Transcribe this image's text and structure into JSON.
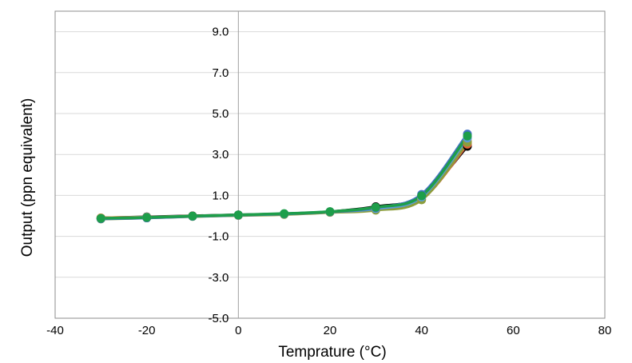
{
  "chart_data": {
    "type": "line",
    "title": "",
    "xlabel": "Temprature (°C)",
    "ylabel": "Output (ppn equivalent)",
    "xlim": [
      -40,
      80
    ],
    "ylim": [
      -5,
      10
    ],
    "xticks": [
      -40,
      -20,
      0,
      20,
      40,
      60,
      80
    ],
    "xtick_labels": [
      "-40",
      "-20",
      "0",
      "20",
      "40",
      "60",
      "80"
    ],
    "yticks": [
      -5,
      -3,
      -1,
      1,
      3,
      5,
      7,
      9
    ],
    "ytick_labels": [
      "-5.0",
      "-3.0",
      "-1.0",
      "1.0",
      "3.0",
      "5.0",
      "7.0",
      "9.0"
    ],
    "grid": true,
    "legend": "none",
    "x": [
      -30,
      -20,
      -10,
      0,
      10,
      20,
      30,
      40,
      50
    ],
    "series": [
      {
        "color": "#000000",
        "values": [
          -0.1,
          -0.05,
          0.0,
          0.05,
          0.1,
          0.2,
          0.45,
          0.95,
          3.4
        ]
      },
      {
        "color": "#E0643A",
        "values": [
          -0.12,
          -0.08,
          -0.02,
          0.03,
          0.08,
          0.18,
          0.3,
          0.8,
          3.5
        ]
      },
      {
        "color": "#F1A44B",
        "values": [
          -0.1,
          -0.06,
          -0.01,
          0.04,
          0.09,
          0.19,
          0.32,
          0.82,
          3.65
        ]
      },
      {
        "color": "#8C9E3C",
        "values": [
          -0.15,
          -0.1,
          -0.03,
          0.02,
          0.07,
          0.17,
          0.28,
          0.78,
          3.6
        ]
      },
      {
        "color": "#5B9BD5",
        "values": [
          -0.13,
          -0.07,
          -0.02,
          0.04,
          0.1,
          0.2,
          0.35,
          0.92,
          3.8
        ]
      },
      {
        "color": "#4472C4",
        "values": [
          -0.14,
          -0.1,
          -0.02,
          0.04,
          0.1,
          0.2,
          0.4,
          1.05,
          4.0
        ]
      },
      {
        "color": "#1E9E4A",
        "values": [
          -0.12,
          -0.08,
          -0.01,
          0.05,
          0.11,
          0.21,
          0.42,
          0.98,
          3.9
        ]
      }
    ]
  }
}
